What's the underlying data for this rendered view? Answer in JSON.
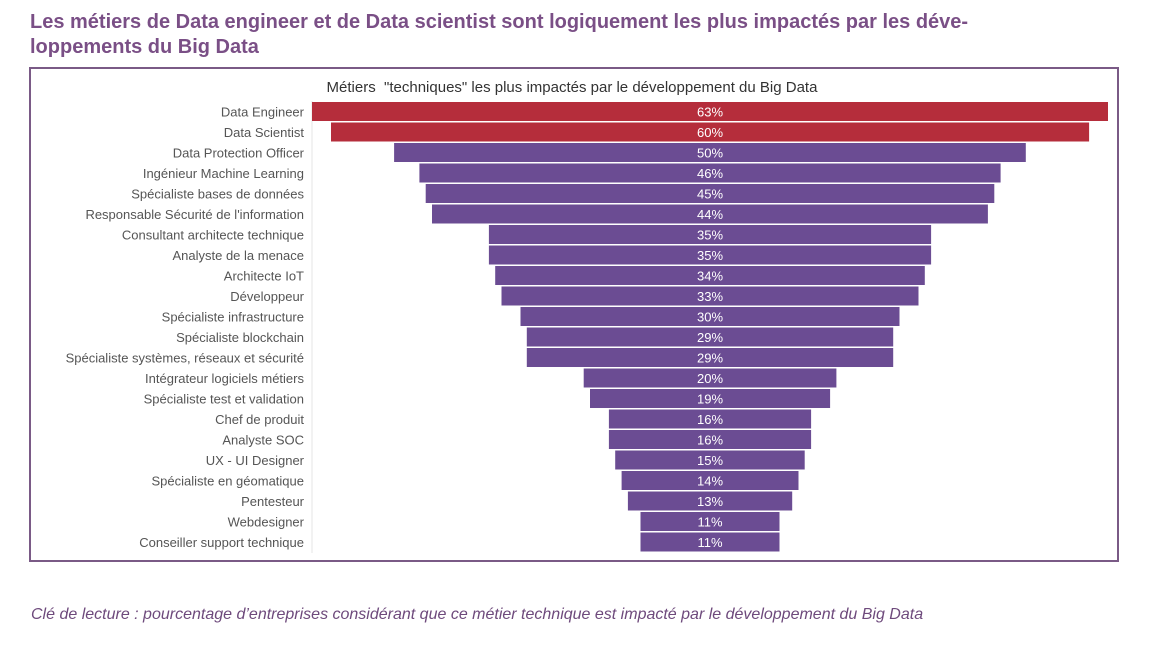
{
  "headline": "Les métiers de Data engineer et de Data scientist sont logiquement les plus impactés par les déve-loppements du Big Data",
  "headline_lines": [
    "Les métiers de Data engineer et de Data scientist sont logiquement les plus impactés par les déve-",
    "loppements du Big Data"
  ],
  "caption": "Clé de lecture : pourcentage d’entreprises considérant que ce métier technique est impacté par le développement du Big Data",
  "colors": {
    "highlight": "#b52d3b",
    "default": "#6b4c93",
    "text": "#555555",
    "accent": "#7a4f86"
  },
  "chart_data": {
    "type": "bar",
    "orientation": "horizontal",
    "style": "funnel (centered bars)",
    "title": "Métiers  \"techniques\" les plus impactés par le développement du Big Data",
    "xlabel": "",
    "ylabel": "",
    "unit": "%",
    "xlim": [
      0,
      63
    ],
    "grid": false,
    "legend": "none",
    "categories": [
      "Data Engineer",
      "Data Scientist",
      "Data Protection Officer",
      "Ingénieur Machine Learning",
      "Spécialiste bases de données",
      "Responsable Sécurité de l'information",
      "Consultant architecte technique",
      "Analyste de la menace",
      "Architecte IoT",
      "Développeur",
      "Spécialiste infrastructure",
      "Spécialiste blockchain",
      "Spécialiste systèmes, réseaux et sécurité",
      "Intégrateur logiciels métiers",
      "Spécialiste test et validation",
      "Chef de produit",
      "Analyste SOC",
      "UX - UI Designer",
      "Spécialiste en géomatique",
      "Pentesteur",
      "Webdesigner",
      "Conseiller support technique"
    ],
    "values": [
      63,
      60,
      50,
      46,
      45,
      44,
      35,
      35,
      34,
      33,
      30,
      29,
      29,
      20,
      19,
      16,
      16,
      15,
      14,
      13,
      11,
      11
    ],
    "data_labels": [
      "63%",
      "60%",
      "50%",
      "46%",
      "45%",
      "44%",
      "35%",
      "35%",
      "34%",
      "33%",
      "30%",
      "29%",
      "29%",
      "20%",
      "19%",
      "16%",
      "16%",
      "15%",
      "14%",
      "13%",
      "11%",
      "11%"
    ],
    "highlighted": [
      true,
      true,
      false,
      false,
      false,
      false,
      false,
      false,
      false,
      false,
      false,
      false,
      false,
      false,
      false,
      false,
      false,
      false,
      false,
      false,
      false,
      false
    ]
  }
}
